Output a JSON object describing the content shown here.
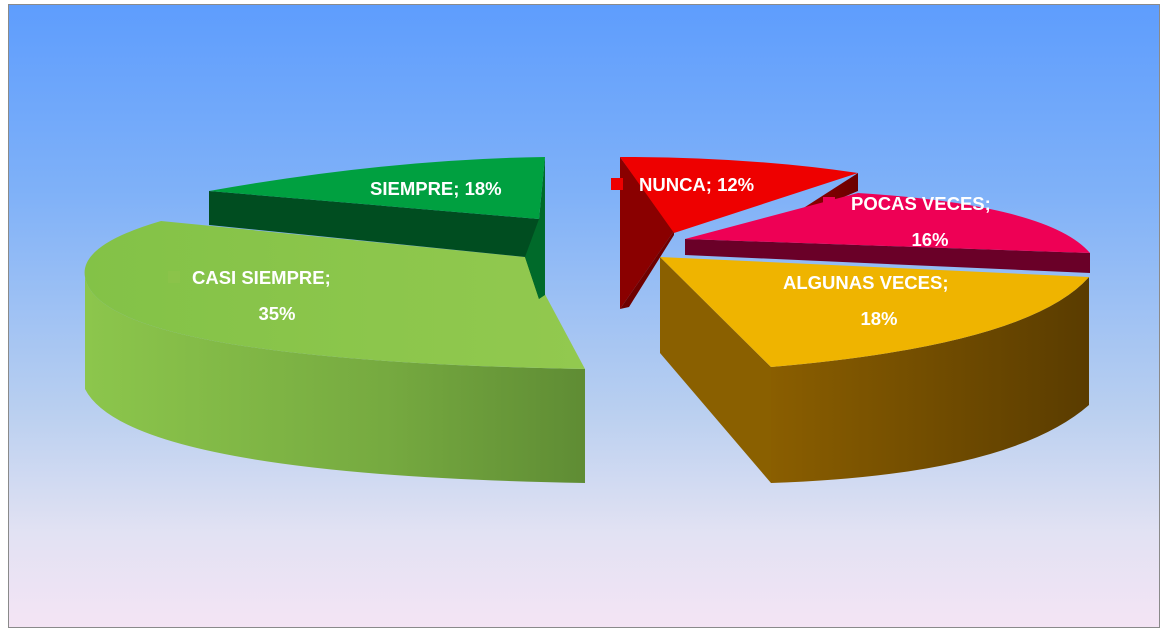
{
  "chart_data": {
    "type": "pie",
    "legend": "none",
    "slices": [
      {
        "label": "NUNCA",
        "percent": 12,
        "text_line1": "NUNCA; 12%",
        "text_line2": "",
        "color": "#ee0000",
        "side_color": "#7d0000"
      },
      {
        "label": "POCAS VECES",
        "percent": 16,
        "text_line1": "POCAS VECES;",
        "text_line2": "16%",
        "color": "#ee0055",
        "side_color": "#6a0028"
      },
      {
        "label": "ALGUNAS VECES",
        "percent": 18,
        "text_line1": "ALGUNAS VECES;",
        "text_line2": "18%",
        "color": "#efb400",
        "side_color": "#7a5200"
      },
      {
        "label": "CASI SIEMPRE",
        "percent": 35,
        "text_line1": "CASI SIEMPRE;",
        "text_line2": "35%",
        "color": "#8bc34a",
        "side_color": "#5a8a2e"
      },
      {
        "label": "SIEMPRE",
        "percent": 18,
        "text_line1": "SIEMPRE; 18%",
        "text_line2": "",
        "color": "#00a040",
        "side_color": "#004d20"
      }
    ]
  }
}
